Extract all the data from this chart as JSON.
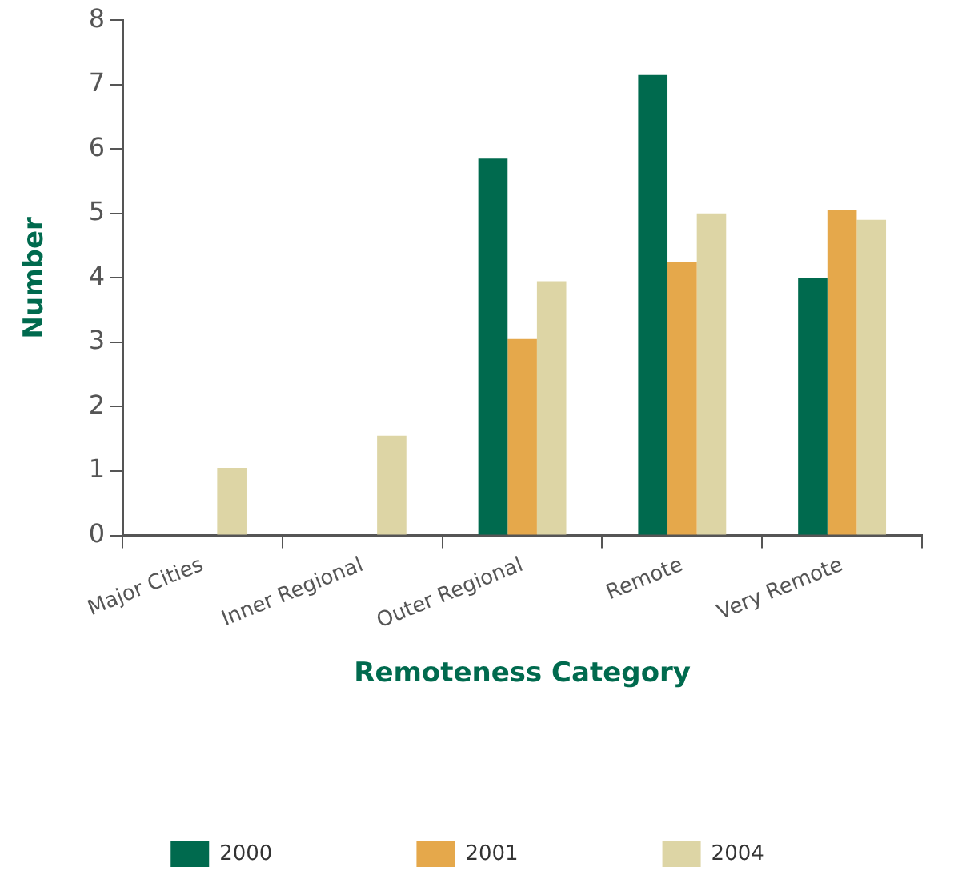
{
  "chart_data": {
    "type": "bar",
    "xlabel": "Remoteness Category",
    "ylabel": "Number",
    "categories": [
      "Major Cities",
      "Inner Regional",
      "Outer Regional",
      "Remote",
      "Very Remote"
    ],
    "series": [
      {
        "name": "2000",
        "color": "#006a4e",
        "values": [
          0,
          0,
          5.85,
          7.15,
          4.0
        ]
      },
      {
        "name": "2001",
        "color": "#e5a84b",
        "values": [
          0,
          0,
          3.05,
          4.25,
          5.05
        ]
      },
      {
        "name": "2004",
        "color": "#ddd5a5",
        "values": [
          1.05,
          1.55,
          3.95,
          5.0,
          4.9
        ]
      }
    ],
    "ylim": [
      0,
      8
    ],
    "yticks": [
      0,
      1,
      2,
      3,
      4,
      5,
      6,
      7,
      8
    ],
    "grid": false,
    "legend": "bottom"
  }
}
